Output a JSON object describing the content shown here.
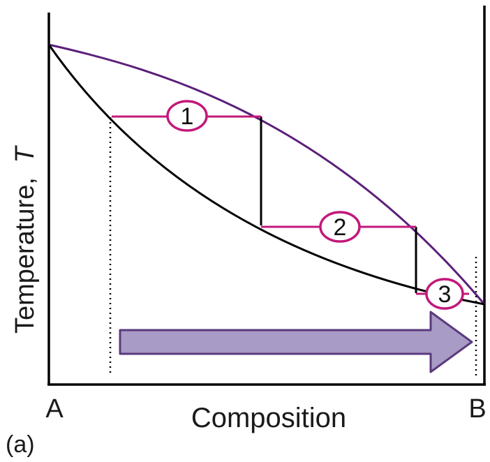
{
  "labels": {
    "y_axis_title": "Temperature,",
    "y_axis_symbol": "T",
    "x_axis_title": "Composition",
    "left_end": "A",
    "right_end": "B",
    "panel": "(a)"
  },
  "steps": [
    {
      "number": "1"
    },
    {
      "number": "2"
    },
    {
      "number": "3"
    }
  ],
  "colors": {
    "vapor_curve": "#5b1f7a",
    "liquid_curve": "#000000",
    "tie_line": "#c2187a",
    "arrow_fill": "#a89bc6",
    "arrow_stroke": "#5b3a7e"
  }
}
